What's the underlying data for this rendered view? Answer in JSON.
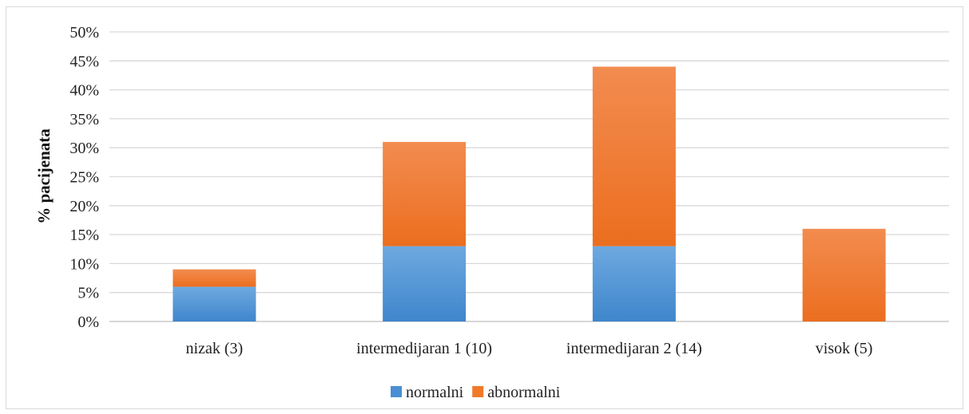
{
  "chart_data": {
    "type": "bar",
    "stacked": true,
    "categories": [
      "nizak (3)",
      "intermedijaran 1 (10)",
      "intermedijaran 2 (14)",
      "visok (5)"
    ],
    "series": [
      {
        "name": "normalni",
        "values": [
          6,
          13,
          13,
          0
        ],
        "color": "#4a8fd2"
      },
      {
        "name": "abnormalni",
        "values": [
          3,
          18,
          31,
          16
        ],
        "color": "#f07a2a"
      }
    ],
    "xlabel": "",
    "ylabel": "% pacijenata",
    "ylim": [
      0,
      50
    ],
    "yticks": [
      "0%",
      "5%",
      "10%",
      "15%",
      "20%",
      "25%",
      "30%",
      "35%",
      "40%",
      "45%",
      "50%"
    ],
    "grid": true,
    "legend": "bottom"
  }
}
